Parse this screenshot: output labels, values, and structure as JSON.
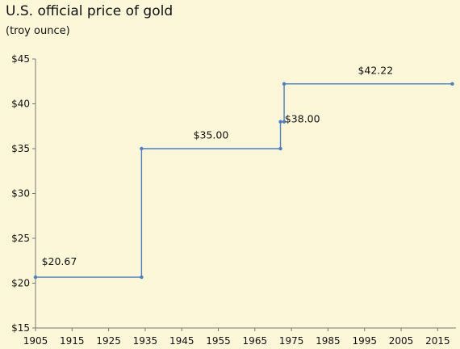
{
  "chart_data": {
    "type": "line",
    "title": "U.S. official price of gold",
    "subtitle": "(troy ounce)",
    "xlabel": "",
    "ylabel": "",
    "xlim": [
      1905,
      2020
    ],
    "ylim": [
      15,
      45
    ],
    "x_ticks": [
      1905,
      1915,
      1925,
      1935,
      1945,
      1955,
      1965,
      1975,
      1985,
      1995,
      2005,
      2015
    ],
    "y_ticks": [
      15,
      20,
      25,
      30,
      35,
      40,
      45
    ],
    "y_tick_labels": [
      "$15",
      "$20",
      "$25",
      "$30",
      "$35",
      "$40",
      "$45"
    ],
    "grid": false,
    "line_color": "#4f7fc0",
    "series": [
      {
        "step": true,
        "points": [
          {
            "x": 1905,
            "y": 20.67
          },
          {
            "x": 1934,
            "y": 20.67
          },
          {
            "x": 1934,
            "y": 35.0
          },
          {
            "x": 1972,
            "y": 35.0
          },
          {
            "x": 1972,
            "y": 38.0
          },
          {
            "x": 1973,
            "y": 38.0
          },
          {
            "x": 1973,
            "y": 42.22
          },
          {
            "x": 2019,
            "y": 42.22
          }
        ],
        "markers": [
          {
            "x": 1905,
            "y": 20.67
          },
          {
            "x": 1934,
            "y": 20.67
          },
          {
            "x": 1934,
            "y": 35.0
          },
          {
            "x": 1972,
            "y": 35.0
          },
          {
            "x": 1972,
            "y": 38.0
          },
          {
            "x": 1973,
            "y": 38.0
          },
          {
            "x": 1973,
            "y": 42.22
          },
          {
            "x": 2019,
            "y": 42.22
          }
        ]
      }
    ],
    "annotations": [
      {
        "text": "$20.67",
        "x": 1911.5,
        "y": 22.4
      },
      {
        "text": "$35.00",
        "x": 1953,
        "y": 36.5
      },
      {
        "text": "$38.00",
        "x": 1978,
        "y": 38.3
      },
      {
        "text": "$42.22",
        "x": 1998,
        "y": 43.7
      }
    ]
  }
}
